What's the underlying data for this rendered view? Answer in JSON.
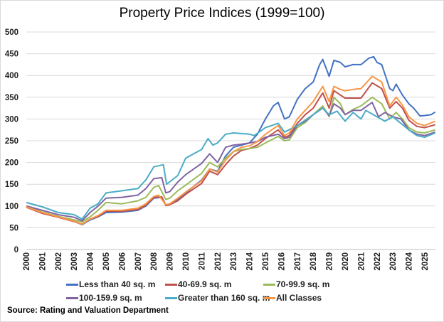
{
  "chart_data": {
    "type": "line",
    "title": "Property Price Indices (1999=100)",
    "xlabel": "",
    "ylabel": "",
    "ylim": [
      0,
      500
    ],
    "yticks": [
      0,
      50,
      100,
      150,
      200,
      250,
      300,
      350,
      400,
      450,
      500
    ],
    "xticks": [
      "2000",
      "2001",
      "2002",
      "2003",
      "2004",
      "2005",
      "2006",
      "2007",
      "2008",
      "2009",
      "2010",
      "2011",
      "2012",
      "2013",
      "2014",
      "2015",
      "2016",
      "2017",
      "2018",
      "2019",
      "2020",
      "2021",
      "2022",
      "2023",
      "2024",
      "2025"
    ],
    "grid": "horizontal",
    "legend_position": "bottom",
    "source": "Source: Rating and Valuation Department",
    "series": [
      {
        "name": "Less than 40 sq. m",
        "color": "#4472C4",
        "points": [
          [
            2000,
            100
          ],
          [
            2001,
            85
          ],
          [
            2002,
            75
          ],
          [
            2003,
            65
          ],
          [
            2003.5,
            57
          ],
          [
            2004,
            68
          ],
          [
            2004.5,
            75
          ],
          [
            2005,
            85
          ],
          [
            2006,
            86
          ],
          [
            2007,
            90
          ],
          [
            2007.5,
            100
          ],
          [
            2008,
            118
          ],
          [
            2008.5,
            120
          ],
          [
            2008.75,
            103
          ],
          [
            2009,
            104
          ],
          [
            2009.5,
            115
          ],
          [
            2010,
            130
          ],
          [
            2011,
            160
          ],
          [
            2011.5,
            185
          ],
          [
            2012,
            180
          ],
          [
            2012.5,
            215
          ],
          [
            2013,
            235
          ],
          [
            2013.5,
            240
          ],
          [
            2014,
            245
          ],
          [
            2014.5,
            265
          ],
          [
            2015,
            300
          ],
          [
            2015.5,
            330
          ],
          [
            2015.8,
            338
          ],
          [
            2016.2,
            300
          ],
          [
            2016.5,
            305
          ],
          [
            2017,
            345
          ],
          [
            2017.5,
            370
          ],
          [
            2018,
            385
          ],
          [
            2018.4,
            425
          ],
          [
            2018.6,
            437
          ],
          [
            2019,
            398
          ],
          [
            2019.3,
            435
          ],
          [
            2019.7,
            430
          ],
          [
            2020,
            420
          ],
          [
            2020.5,
            425
          ],
          [
            2021,
            425
          ],
          [
            2021.5,
            440
          ],
          [
            2021.8,
            443
          ],
          [
            2022,
            430
          ],
          [
            2022.3,
            425
          ],
          [
            2022.8,
            370
          ],
          [
            2023,
            365
          ],
          [
            2023.2,
            380
          ],
          [
            2023.6,
            355
          ],
          [
            2024,
            335
          ],
          [
            2024.3,
            325
          ],
          [
            2024.7,
            307
          ],
          [
            2025,
            308
          ],
          [
            2025.4,
            310
          ],
          [
            2025.65,
            316
          ]
        ]
      },
      {
        "name": "40-69.9 sq. m",
        "color": "#C0504D",
        "points": [
          [
            2000,
            97
          ],
          [
            2001,
            83
          ],
          [
            2002,
            74
          ],
          [
            2003,
            64
          ],
          [
            2003.5,
            58
          ],
          [
            2004,
            70
          ],
          [
            2004.5,
            76
          ],
          [
            2005,
            88
          ],
          [
            2006,
            88
          ],
          [
            2007,
            92
          ],
          [
            2007.5,
            102
          ],
          [
            2008,
            120
          ],
          [
            2008.5,
            121
          ],
          [
            2008.75,
            101
          ],
          [
            2009,
            103
          ],
          [
            2009.5,
            112
          ],
          [
            2010,
            127
          ],
          [
            2011,
            152
          ],
          [
            2011.5,
            180
          ],
          [
            2012,
            172
          ],
          [
            2012.5,
            195
          ],
          [
            2013,
            215
          ],
          [
            2013.5,
            228
          ],
          [
            2014,
            232
          ],
          [
            2014.5,
            240
          ],
          [
            2015,
            255
          ],
          [
            2015.8,
            275
          ],
          [
            2016.2,
            258
          ],
          [
            2016.5,
            262
          ],
          [
            2017,
            290
          ],
          [
            2017.5,
            310
          ],
          [
            2018,
            325
          ],
          [
            2018.6,
            360
          ],
          [
            2019,
            325
          ],
          [
            2019.3,
            365
          ],
          [
            2019.7,
            355
          ],
          [
            2020,
            348
          ],
          [
            2020.5,
            348
          ],
          [
            2021,
            348
          ],
          [
            2021.7,
            383
          ],
          [
            2022.3,
            370
          ],
          [
            2022.8,
            325
          ],
          [
            2023.2,
            340
          ],
          [
            2023.6,
            325
          ],
          [
            2024,
            297
          ],
          [
            2024.5,
            283
          ],
          [
            2025,
            280
          ],
          [
            2025.65,
            287
          ]
        ]
      },
      {
        "name": "70-99.9 sq. m",
        "color": "#9BBB59",
        "points": [
          [
            2000,
            100
          ],
          [
            2001,
            86
          ],
          [
            2002,
            76
          ],
          [
            2003,
            68
          ],
          [
            2003.5,
            63
          ],
          [
            2004,
            75
          ],
          [
            2004.5,
            90
          ],
          [
            2005,
            108
          ],
          [
            2006,
            105
          ],
          [
            2007,
            112
          ],
          [
            2007.5,
            120
          ],
          [
            2008,
            143
          ],
          [
            2008.3,
            147
          ],
          [
            2008.75,
            115
          ],
          [
            2009,
            118
          ],
          [
            2009.5,
            135
          ],
          [
            2010,
            148
          ],
          [
            2011,
            175
          ],
          [
            2011.5,
            200
          ],
          [
            2012,
            190
          ],
          [
            2012.5,
            210
          ],
          [
            2013,
            225
          ],
          [
            2013.5,
            230
          ],
          [
            2014,
            232
          ],
          [
            2014.5,
            235
          ],
          [
            2015,
            245
          ],
          [
            2015.8,
            260
          ],
          [
            2016.2,
            250
          ],
          [
            2016.5,
            252
          ],
          [
            2017,
            280
          ],
          [
            2017.5,
            292
          ],
          [
            2018,
            310
          ],
          [
            2018.6,
            330
          ],
          [
            2019,
            305
          ],
          [
            2019.3,
            350
          ],
          [
            2019.7,
            335
          ],
          [
            2020,
            310
          ],
          [
            2020.5,
            322
          ],
          [
            2021,
            330
          ],
          [
            2021.7,
            350
          ],
          [
            2022.3,
            335
          ],
          [
            2022.8,
            300
          ],
          [
            2023.2,
            315
          ],
          [
            2023.6,
            300
          ],
          [
            2024,
            280
          ],
          [
            2024.5,
            270
          ],
          [
            2025,
            268
          ],
          [
            2025.65,
            275
          ]
        ]
      },
      {
        "name": "100-159.9 sq. m",
        "color": "#8064A2",
        "points": [
          [
            2000,
            100
          ],
          [
            2001,
            90
          ],
          [
            2002,
            80
          ],
          [
            2003,
            74
          ],
          [
            2003.5,
            66
          ],
          [
            2004,
            85
          ],
          [
            2004.5,
            100
          ],
          [
            2005,
            118
          ],
          [
            2006,
            120
          ],
          [
            2007,
            125
          ],
          [
            2007.5,
            140
          ],
          [
            2008,
            163
          ],
          [
            2008.5,
            165
          ],
          [
            2008.75,
            130
          ],
          [
            2009,
            133
          ],
          [
            2009.5,
            155
          ],
          [
            2010,
            172
          ],
          [
            2011,
            198
          ],
          [
            2011.5,
            220
          ],
          [
            2012,
            200
          ],
          [
            2012.5,
            235
          ],
          [
            2013,
            240
          ],
          [
            2013.5,
            242
          ],
          [
            2014,
            245
          ],
          [
            2014.5,
            248
          ],
          [
            2015,
            258
          ],
          [
            2015.8,
            265
          ],
          [
            2016.2,
            255
          ],
          [
            2016.5,
            258
          ],
          [
            2017,
            285
          ],
          [
            2017.5,
            295
          ],
          [
            2018,
            310
          ],
          [
            2018.6,
            325
          ],
          [
            2019,
            308
          ],
          [
            2019.3,
            335
          ],
          [
            2019.7,
            325
          ],
          [
            2020,
            310
          ],
          [
            2020.5,
            320
          ],
          [
            2021,
            320
          ],
          [
            2021.7,
            338
          ],
          [
            2022.1,
            305
          ],
          [
            2022.5,
            315
          ],
          [
            2023,
            305
          ],
          [
            2023.5,
            300
          ],
          [
            2024,
            275
          ],
          [
            2024.5,
            265
          ],
          [
            2025,
            262
          ],
          [
            2025.65,
            270
          ]
        ]
      },
      {
        "name": "Greater than 160 sq. m",
        "color": "#4BACC6",
        "points": [
          [
            2000,
            108
          ],
          [
            2001,
            98
          ],
          [
            2002,
            85
          ],
          [
            2003,
            80
          ],
          [
            2003.5,
            70
          ],
          [
            2004,
            95
          ],
          [
            2004.5,
            105
          ],
          [
            2005,
            130
          ],
          [
            2006,
            135
          ],
          [
            2007,
            140
          ],
          [
            2007.5,
            160
          ],
          [
            2008,
            190
          ],
          [
            2008.6,
            195
          ],
          [
            2008.8,
            150
          ],
          [
            2009.5,
            170
          ],
          [
            2010,
            210
          ],
          [
            2011,
            230
          ],
          [
            2011.4,
            255
          ],
          [
            2011.7,
            240
          ],
          [
            2012,
            245
          ],
          [
            2012.5,
            265
          ],
          [
            2013,
            268
          ],
          [
            2014,
            265
          ],
          [
            2014.3,
            262
          ],
          [
            2015,
            280
          ],
          [
            2015.8,
            290
          ],
          [
            2016.2,
            270
          ],
          [
            2017,
            285
          ],
          [
            2018,
            310
          ],
          [
            2018.6,
            325
          ],
          [
            2019,
            310
          ],
          [
            2019.5,
            318
          ],
          [
            2020,
            295
          ],
          [
            2020.5,
            315
          ],
          [
            2021,
            300
          ],
          [
            2021.3,
            320
          ],
          [
            2022,
            305
          ],
          [
            2022.5,
            295
          ],
          [
            2023,
            305
          ],
          [
            2024,
            275
          ],
          [
            2024.5,
            262
          ],
          [
            2025,
            258
          ],
          [
            2025.65,
            268
          ]
        ]
      },
      {
        "name": "All Classes",
        "color": "#F79646",
        "points": [
          [
            2000,
            98
          ],
          [
            2001,
            85
          ],
          [
            2002,
            75
          ],
          [
            2003,
            65
          ],
          [
            2003.5,
            58
          ],
          [
            2004,
            70
          ],
          [
            2004.5,
            78
          ],
          [
            2005,
            90
          ],
          [
            2006,
            90
          ],
          [
            2007,
            95
          ],
          [
            2007.5,
            105
          ],
          [
            2008,
            122
          ],
          [
            2008.3,
            125
          ],
          [
            2008.75,
            103
          ],
          [
            2009,
            105
          ],
          [
            2009.5,
            118
          ],
          [
            2010,
            132
          ],
          [
            2011,
            158
          ],
          [
            2011.5,
            185
          ],
          [
            2012,
            178
          ],
          [
            2012.5,
            205
          ],
          [
            2013,
            225
          ],
          [
            2013.5,
            235
          ],
          [
            2014,
            238
          ],
          [
            2014.5,
            248
          ],
          [
            2015,
            265
          ],
          [
            2015.8,
            285
          ],
          [
            2016.2,
            262
          ],
          [
            2016.5,
            268
          ],
          [
            2017,
            300
          ],
          [
            2017.5,
            320
          ],
          [
            2018,
            340
          ],
          [
            2018.6,
            375
          ],
          [
            2019,
            340
          ],
          [
            2019.3,
            375
          ],
          [
            2019.7,
            368
          ],
          [
            2020,
            365
          ],
          [
            2020.5,
            368
          ],
          [
            2021,
            370
          ],
          [
            2021.7,
            398
          ],
          [
            2022.3,
            385
          ],
          [
            2022.8,
            330
          ],
          [
            2023.2,
            350
          ],
          [
            2023.6,
            332
          ],
          [
            2024,
            305
          ],
          [
            2024.5,
            290
          ],
          [
            2025,
            285
          ],
          [
            2025.65,
            295
          ]
        ]
      }
    ]
  }
}
